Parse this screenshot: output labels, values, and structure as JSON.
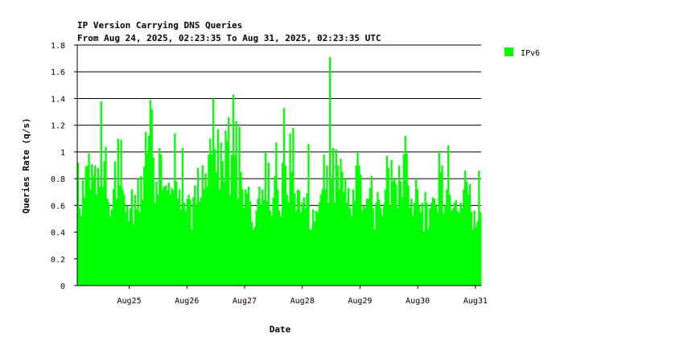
{
  "chart_data": {
    "type": "bar",
    "title": "IP Version Carrying DNS Queries",
    "subtitle": "From Aug 24, 2025, 02:23:35 To Aug 31, 2025, 02:23:35 UTC",
    "xlabel": "Date",
    "ylabel": "Queries Rate (q/s)",
    "ylim": [
      0,
      1.8
    ],
    "yticks": [
      "0",
      "0.2",
      "0.4",
      "0.6",
      "0.8",
      "1",
      "1.2",
      "1.4",
      "1.6",
      "1.8"
    ],
    "xlim": [
      0,
      7
    ],
    "xticks": [
      {
        "label": "Aug25",
        "day": 0.9
      },
      {
        "label": "Aug26",
        "day": 1.9
      },
      {
        "label": "Aug27",
        "day": 2.9
      },
      {
        "label": "Aug28",
        "day": 3.9
      },
      {
        "label": "Aug29",
        "day": 4.9
      },
      {
        "label": "Aug30",
        "day": 5.9
      },
      {
        "label": "Aug31",
        "day": 6.9
      }
    ],
    "grid": true,
    "legend_position": "right",
    "series": [
      {
        "name": "IPv6",
        "color": "#00ff00",
        "values": [
          0.92,
          0.58,
          0.52,
          0.79,
          0.66,
          0.89,
          0.9,
          0.99,
          0.72,
          0.91,
          0.82,
          0.9,
          0.68,
          0.88,
          0.74,
          1.38,
          0.74,
          0.93,
          1.04,
          0.65,
          0.62,
          0.52,
          0.57,
          0.72,
          0.93,
          0.65,
          1.1,
          0.75,
          1.09,
          0.72,
          0.68,
          0.55,
          0.6,
          0.48,
          0.58,
          0.72,
          0.46,
          0.68,
          0.57,
          0.8,
          0.55,
          0.82,
          0.64,
          0.89,
          1.15,
          0.99,
          1.12,
          1.39,
          1.32,
          0.96,
          0.62,
          0.78,
          0.68,
          1.03,
          0.98,
          0.72,
          0.74,
          0.75,
          0.71,
          0.77,
          0.68,
          0.73,
          0.71,
          1.14,
          0.78,
          0.65,
          0.72,
          0.57,
          1.03,
          0.62,
          0.56,
          0.65,
          0.68,
          0.64,
          0.42,
          0.66,
          0.75,
          0.6,
          0.88,
          0.63,
          0.66,
          0.9,
          0.72,
          0.84,
          0.74,
          0.98,
          1.1,
          0.98,
          1.4,
          1.02,
          0.85,
          1.17,
          0.72,
          1.07,
          0.93,
          0.78,
          1.16,
          1.08,
          1.26,
          0.68,
          0.98,
          1.43,
          0.97,
          1.23,
          0.65,
          1.19,
          0.85,
          0.72,
          0.58,
          0.72,
          0.69,
          0.74,
          0.63,
          0.48,
          0.42,
          0.44,
          0.56,
          0.65,
          0.74,
          0.6,
          0.72,
          0.64,
          1.0,
          0.63,
          0.92,
          0.56,
          0.52,
          0.66,
          0.82,
          1.07,
          0.72,
          0.56,
          0.52,
          0.92,
          1.33,
          0.9,
          0.68,
          0.62,
          1.14,
          0.85,
          1.18,
          0.69,
          0.56,
          0.72,
          0.71,
          0.55,
          0.62,
          0.66,
          0.58,
          0.69,
          1.06,
          0.42,
          0.42,
          0.57,
          0.48,
          0.56,
          0.55,
          0.62,
          0.68,
          0.72,
          0.98,
          0.72,
          0.9,
          0.62,
          1.71,
          0.8,
          1.03,
          0.62,
          1.02,
          0.9,
          0.72,
          0.95,
          0.85,
          0.7,
          0.8,
          0.62,
          0.73,
          0.58,
          0.52,
          0.72,
          0.63,
          0.9,
          1.0,
          0.9,
          0.83,
          0.56,
          0.6,
          0.58,
          0.65,
          0.65,
          0.73,
          0.82,
          0.58,
          0.42,
          0.62,
          0.7,
          0.64,
          0.58,
          0.52,
          0.61,
          0.72,
          0.97,
          0.88,
          0.6,
          0.94,
          0.78,
          0.8,
          0.76,
          0.58,
          0.9,
          0.78,
          0.66,
          0.98,
          1.12,
          0.99,
          0.75,
          0.58,
          0.65,
          0.52,
          0.62,
          0.8,
          0.72,
          0.6,
          0.55,
          0.62,
          0.4,
          0.7,
          0.62,
          0.42,
          0.58,
          0.62,
          0.66,
          0.65,
          0.6,
          0.55,
          1.01,
          0.85,
          0.9,
          0.54,
          0.6,
          0.72,
          1.05,
          0.68,
          0.56,
          0.58,
          0.62,
          0.64,
          0.56,
          0.54,
          0.62,
          0.58,
          0.72,
          0.86,
          0.78,
          0.68,
          0.76,
          0.55,
          0.42,
          0.56,
          0.44,
          0.48,
          0.86,
          0.55
        ]
      }
    ]
  },
  "legend": {
    "items": [
      {
        "label": "IPv6",
        "color": "#00ff00"
      }
    ]
  }
}
